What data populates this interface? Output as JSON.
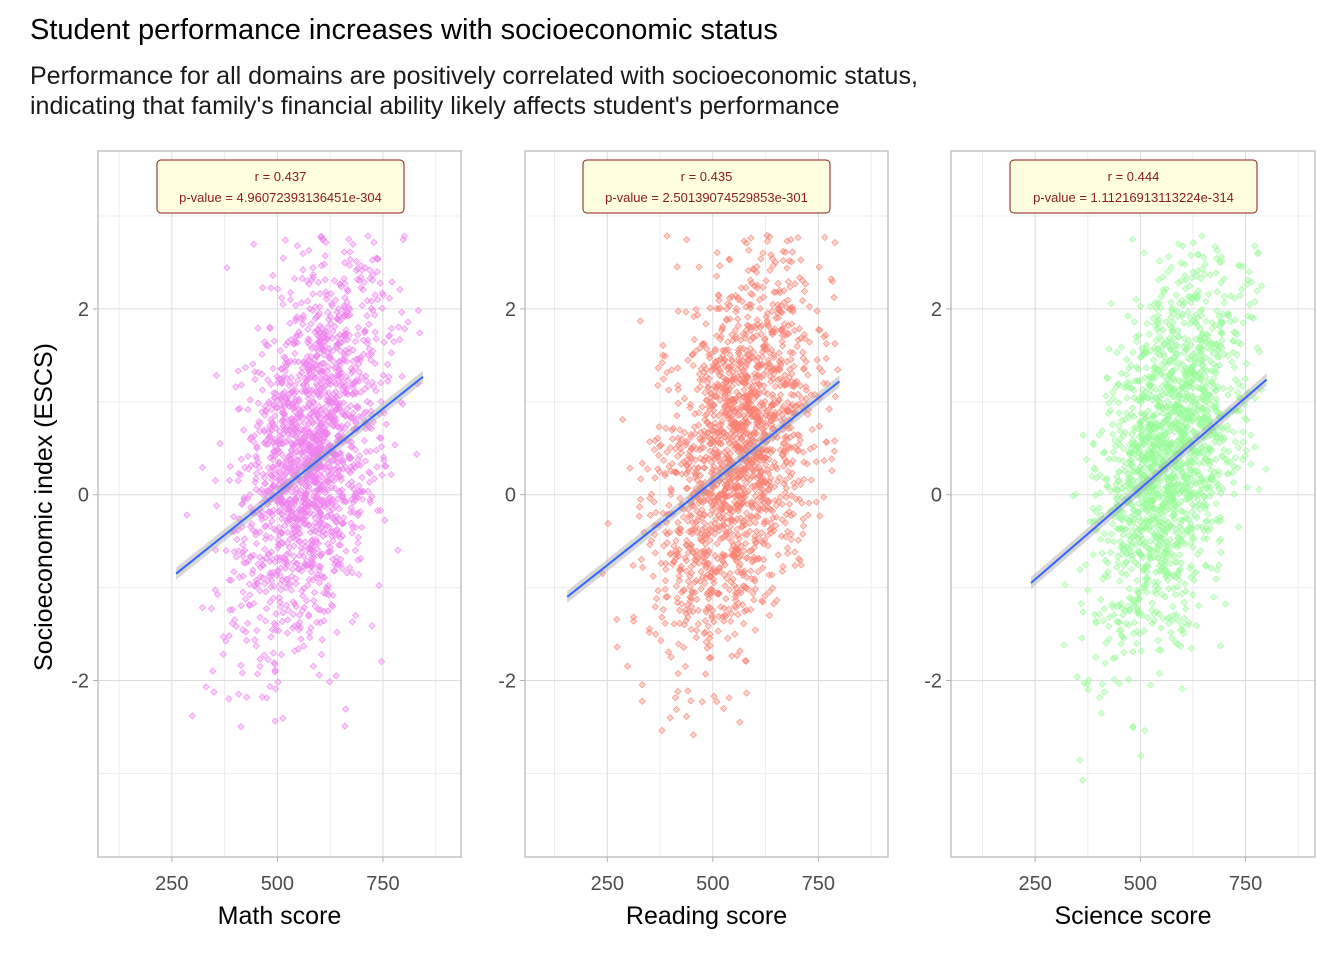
{
  "title": "Student performance increases with socioeconomic status",
  "subtitle_lines": [
    "Performance for all domains are positively correlated with socioeconomic status,",
    "indicating that family's financial ability likely affects student's performance"
  ],
  "colors": {
    "math_points": "#EE82EE",
    "reading_points": "#FA8072",
    "science_points": "#98FB98",
    "regression_line": "#3366FF",
    "confidence_band": "#A6A6A6",
    "annotation_fill": "#FFFFE0",
    "annotation_border": "#8B1A1A",
    "annotation_text": "#8B1A1A"
  },
  "chart_data": {
    "type": "scatter",
    "ylabel": "Socioeconomic index (ESCS)",
    "ylim": [
      -3.9,
      3.7
    ],
    "yticks": [
      -2,
      0,
      2
    ],
    "yticklabels": [
      "-2",
      "0",
      "2"
    ],
    "grid": true,
    "panels": [
      {
        "name": "math",
        "xlabel": "Math score",
        "xlim": [
          75,
          935
        ],
        "xticks": [
          250,
          500,
          750
        ],
        "xticklabels": [
          "250",
          "500",
          "750"
        ],
        "annotation": {
          "r_text": "r =  0.437",
          "p_text": "p-value =  4.96072393136451e-304"
        },
        "cloud": {
          "x_mean": 580,
          "x_sd": 85,
          "x_min": 260,
          "x_max": 850,
          "y_center": 0.8,
          "y_sd": 1.0,
          "corr": 0.437
        },
        "fit_line": {
          "x": [
            260,
            845
          ],
          "y": [
            -0.85,
            1.27
          ]
        }
      },
      {
        "name": "reading",
        "xlabel": "Reading score",
        "xlim": [
          55,
          915
        ],
        "xticks": [
          250,
          500,
          750
        ],
        "xticklabels": [
          "250",
          "500",
          "750"
        ],
        "annotation": {
          "r_text": "r =  0.435",
          "p_text": "p-value =  2.50139074529853e-301"
        },
        "cloud": {
          "x_mean": 560,
          "x_sd": 95,
          "x_min": 150,
          "x_max": 820,
          "y_center": 0.8,
          "y_sd": 1.0,
          "corr": 0.435
        },
        "fit_line": {
          "x": [
            155,
            800
          ],
          "y": [
            -1.1,
            1.22
          ]
        }
      },
      {
        "name": "science",
        "xlabel": "Science score",
        "xlim": [
          50,
          915
        ],
        "xticks": [
          250,
          500,
          750
        ],
        "xticklabels": [
          "250",
          "500",
          "750"
        ],
        "annotation": {
          "r_text": "r =  0.444",
          "p_text": "p-value =  1.11216913113224e-314"
        },
        "cloud": {
          "x_mean": 570,
          "x_sd": 85,
          "x_min": 240,
          "x_max": 800,
          "y_center": 0.8,
          "y_sd": 1.0,
          "corr": 0.444
        },
        "fit_line": {
          "x": [
            240,
            800
          ],
          "y": [
            -0.95,
            1.24
          ]
        }
      }
    ]
  }
}
